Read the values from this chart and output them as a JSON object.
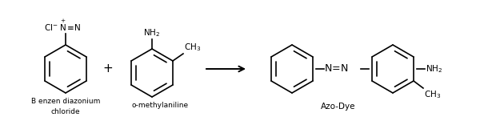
{
  "background": "#ffffff",
  "text_color": "#000000",
  "figure_width": 6.05,
  "figure_height": 1.66,
  "dpi": 100,
  "reactant1_sublabel1": "B enzen diazonium",
  "reactant1_sublabel2": "chloride",
  "reactant2_label_nh2": "NH$_2$",
  "reactant2_label_ch3": "CH$_3$",
  "reactant2_sublabel": "o-methylaniline",
  "plus_sign": "+",
  "product_nh2": "NH$_2$",
  "product_ch3": "CH$_3$",
  "product_label": "Azo-Dye",
  "ring_color": "#000000",
  "line_width": 1.2
}
